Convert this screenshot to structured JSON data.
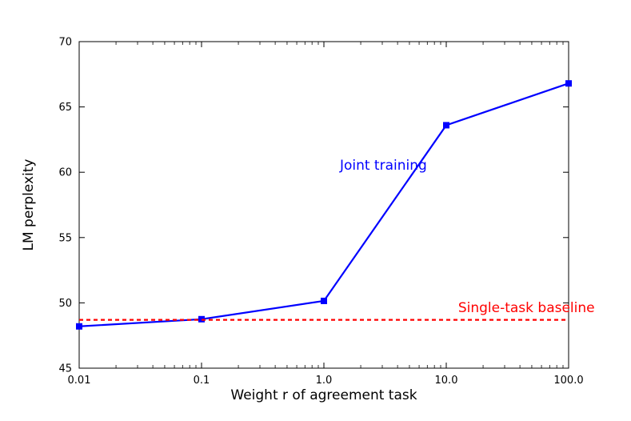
{
  "chart_data": {
    "type": "line",
    "xscale": "log",
    "x": [
      0.01,
      0.1,
      1.0,
      10.0,
      100.0
    ],
    "x_tick_labels": [
      "0.01",
      "0.1",
      "1.0",
      "10.0",
      "100.0"
    ],
    "xlim": [
      0.01,
      100.0
    ],
    "ylim": [
      45,
      70
    ],
    "y_ticks": [
      45,
      50,
      55,
      60,
      65,
      70
    ],
    "xlabel": "Weight r of agreement task",
    "ylabel": "LM perplexity",
    "grid": false,
    "series": [
      {
        "name": "Joint training",
        "values": [
          48.2,
          48.75,
          50.15,
          63.6,
          66.8
        ],
        "color": "#0000ff",
        "style": "solid",
        "marker": "square"
      },
      {
        "name": "Single-task baseline",
        "values": [
          48.7,
          48.7,
          48.7,
          48.7,
          48.7
        ],
        "color": "#ff0000",
        "style": "dashed"
      }
    ],
    "annotations": [
      {
        "text": "Joint training",
        "x": 1.35,
        "y": 60.2,
        "color": "#0000ff"
      },
      {
        "text": "Single-task baseline",
        "x": 12.5,
        "y": 49.3,
        "color": "#ff0000"
      }
    ]
  }
}
